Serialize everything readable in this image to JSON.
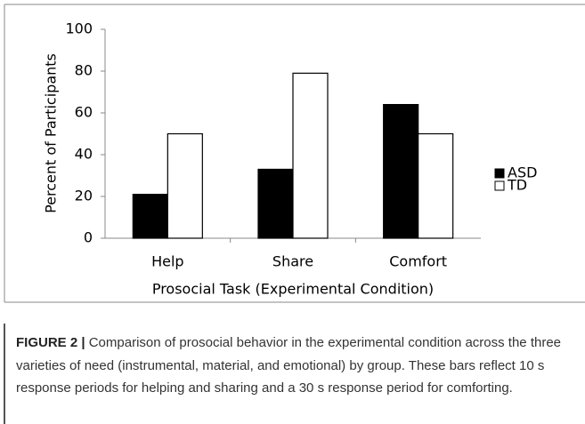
{
  "chart_data": {
    "type": "bar",
    "categories": [
      "Help",
      "Share",
      "Comfort"
    ],
    "series": [
      {
        "name": "ASD",
        "color": "#000000",
        "values": [
          21,
          33,
          64
        ]
      },
      {
        "name": "TD",
        "color": "#ffffff",
        "values": [
          50,
          79,
          50
        ]
      }
    ],
    "ylabel": "Percent of Participants",
    "xlabel": "Prosocial Task (Experimental Condition)",
    "ylim": [
      0,
      100
    ],
    "yticks": [
      0,
      20,
      40,
      60,
      80,
      100
    ],
    "grid": false,
    "legend": "right"
  },
  "caption": {
    "label": "FIGURE 2 |",
    "text": "Comparison of prosocial behavior in the experimental condition across the three varieties of need (instrumental, material, and emotional) by group. These bars reflect 10 s response periods for helping and sharing and a 30 s response period for comforting."
  }
}
